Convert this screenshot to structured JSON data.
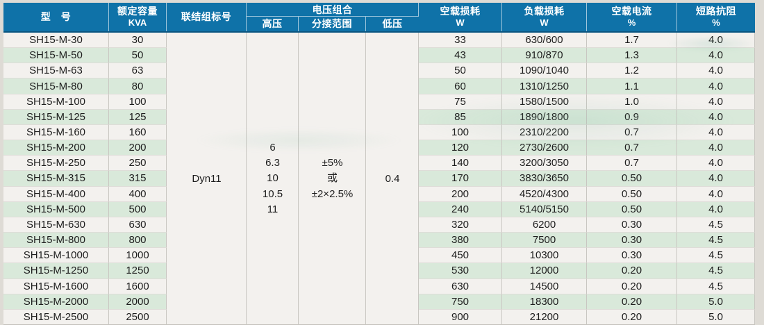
{
  "colors": {
    "header_blue": "#0f72a8",
    "header_divider": "#0a5580",
    "row_stripe_green": "#d9e9da",
    "paper_white": "#f3f1ee",
    "header_text": "#ffffff",
    "body_text": "#1d1d1d"
  },
  "table": {
    "headers": {
      "model": "型　号",
      "capacity_line1": "额定容量",
      "capacity_line2": "KVA",
      "connection": "联结组标号",
      "voltage_group": "电压组合",
      "hv": "高压",
      "tap": "分接范围",
      "lv": "低压",
      "no_load_loss_line1": "空载损耗",
      "no_load_loss_line2": "W",
      "load_loss_line1": "负载损耗",
      "load_loss_line2": "W",
      "no_load_current_line1": "空载电流",
      "no_load_current_line2": "%",
      "impedance_line1": "短路抗阻",
      "impedance_line2": "%"
    },
    "merged": {
      "connection": "Dyn11",
      "hv_values": [
        "6",
        "6.3",
        "10",
        "10.5",
        "11"
      ],
      "tap_lines": [
        "±5%",
        "或",
        "±2×2.5%"
      ],
      "lv": "0.4"
    },
    "rows": [
      {
        "model": "SH15-M-30",
        "kva": "30",
        "no_load_loss": "33",
        "load_loss": "630/600",
        "no_load_current": "1.7",
        "impedance": "4.0"
      },
      {
        "model": "SH15-M-50",
        "kva": "50",
        "no_load_loss": "43",
        "load_loss": "910/870",
        "no_load_current": "1.3",
        "impedance": "4.0"
      },
      {
        "model": "SH15-M-63",
        "kva": "63",
        "no_load_loss": "50",
        "load_loss": "1090/1040",
        "no_load_current": "1.2",
        "impedance": "4.0"
      },
      {
        "model": "SH15-M-80",
        "kva": "80",
        "no_load_loss": "60",
        "load_loss": "1310/1250",
        "no_load_current": "1.1",
        "impedance": "4.0"
      },
      {
        "model": "SH15-M-100",
        "kva": "100",
        "no_load_loss": "75",
        "load_loss": "1580/1500",
        "no_load_current": "1.0",
        "impedance": "4.0"
      },
      {
        "model": "SH15-M-125",
        "kva": "125",
        "no_load_loss": "85",
        "load_loss": "1890/1800",
        "no_load_current": "0.9",
        "impedance": "4.0"
      },
      {
        "model": "SH15-M-160",
        "kva": "160",
        "no_load_loss": "100",
        "load_loss": "2310/2200",
        "no_load_current": "0.7",
        "impedance": "4.0"
      },
      {
        "model": "SH15-M-200",
        "kva": "200",
        "no_load_loss": "120",
        "load_loss": "2730/2600",
        "no_load_current": "0.7",
        "impedance": "4.0"
      },
      {
        "model": "SH15-M-250",
        "kva": "250",
        "no_load_loss": "140",
        "load_loss": "3200/3050",
        "no_load_current": "0.7",
        "impedance": "4.0"
      },
      {
        "model": "SH15-M-315",
        "kva": "315",
        "no_load_loss": "170",
        "load_loss": "3830/3650",
        "no_load_current": "0.50",
        "impedance": "4.0"
      },
      {
        "model": "SH15-M-400",
        "kva": "400",
        "no_load_loss": "200",
        "load_loss": "4520/4300",
        "no_load_current": "0.50",
        "impedance": "4.0"
      },
      {
        "model": "SH15-M-500",
        "kva": "500",
        "no_load_loss": "240",
        "load_loss": "5140/5150",
        "no_load_current": "0.50",
        "impedance": "4.0"
      },
      {
        "model": "SH15-M-630",
        "kva": "630",
        "no_load_loss": "320",
        "load_loss": "6200",
        "no_load_current": "0.30",
        "impedance": "4.5"
      },
      {
        "model": "SH15-M-800",
        "kva": "800",
        "no_load_loss": "380",
        "load_loss": "7500",
        "no_load_current": "0.30",
        "impedance": "4.5"
      },
      {
        "model": "SH15-M-1000",
        "kva": "1000",
        "no_load_loss": "450",
        "load_loss": "10300",
        "no_load_current": "0.30",
        "impedance": "4.5"
      },
      {
        "model": "SH15-M-1250",
        "kva": "1250",
        "no_load_loss": "530",
        "load_loss": "12000",
        "no_load_current": "0.20",
        "impedance": "4.5"
      },
      {
        "model": "SH15-M-1600",
        "kva": "1600",
        "no_load_loss": "630",
        "load_loss": "14500",
        "no_load_current": "0.20",
        "impedance": "4.5"
      },
      {
        "model": "SH15-M-2000",
        "kva": "2000",
        "no_load_loss": "750",
        "load_loss": "18300",
        "no_load_current": "0.20",
        "impedance": "5.0"
      },
      {
        "model": "SH15-M-2500",
        "kva": "2500",
        "no_load_loss": "900",
        "load_loss": "21200",
        "no_load_current": "0.20",
        "impedance": "5.0"
      }
    ]
  }
}
